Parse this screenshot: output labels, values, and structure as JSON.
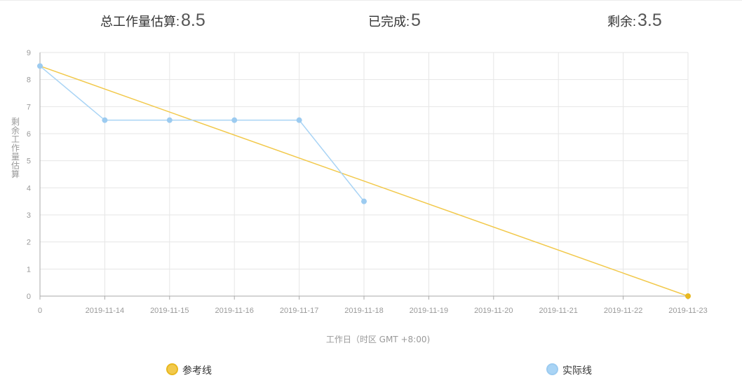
{
  "summary": {
    "total_label": "总工作量估算:",
    "total_value": "8.5",
    "done_label": "已完成:",
    "done_value": "5",
    "remaining_label": "剩余:",
    "remaining_value": "3.5"
  },
  "legend": {
    "reference_label": "参考线",
    "actual_label": "实际线"
  },
  "colors": {
    "reference": "#f2c94c",
    "reference_dot": "#e8b820",
    "actual": "#a9d4f5",
    "actual_dot": "#9ccbf0",
    "grid": "#e6e6e6",
    "axis": "#aaaaaa",
    "tick_text": "#999999"
  },
  "chart_data": {
    "type": "line",
    "xlabel": "工作日（时区 GMT +8:00)",
    "ylabel": "剩余工作量估算",
    "x_tick_labels": [
      "0",
      "2019-11-14",
      "2019-11-15",
      "2019-11-16",
      "2019-11-17",
      "2019-11-18",
      "2019-11-19",
      "2019-11-20",
      "2019-11-21",
      "2019-11-22",
      "2019-11-23"
    ],
    "ylim": [
      0,
      9
    ],
    "y_ticks": [
      0,
      1,
      2,
      3,
      4,
      5,
      6,
      7,
      8,
      9
    ],
    "grid": true,
    "series": [
      {
        "name": "参考线",
        "x": [
          "0",
          "2019-11-23"
        ],
        "values": [
          8.5,
          0
        ],
        "color": "#f2c94c"
      },
      {
        "name": "实际线",
        "x": [
          "0",
          "2019-11-14",
          "2019-11-15",
          "2019-11-16",
          "2019-11-17",
          "2019-11-18"
        ],
        "values": [
          8.5,
          6.5,
          6.5,
          6.5,
          6.5,
          3.5
        ],
        "color": "#a9d4f5"
      }
    ]
  }
}
